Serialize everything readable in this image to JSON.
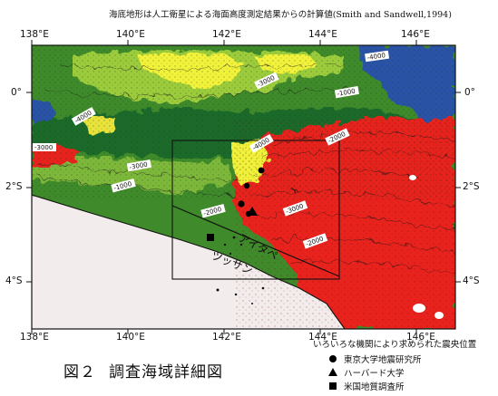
{
  "header_note": "海底地形は人工衛星による海面高度測定結果からの計算値(Smith and Sandwell,1994)",
  "longitudes": [
    "138°E",
    "140°E",
    "142°E",
    "144°E",
    "146°E"
  ],
  "latitudes": [
    "0°",
    "2°S",
    "4°S"
  ],
  "contour_labels": [
    "-4000",
    "-3000",
    "-2000",
    "-1000"
  ],
  "trench_label": "アイタペ",
  "coast_label": "ツッサン",
  "figure": {
    "number": "図２",
    "title": "調査海域詳細図"
  },
  "legend": {
    "title": "いろいろな機関により求められた震央位置",
    "items": [
      {
        "symbol": "circle",
        "label": "東京大学地震研究所"
      },
      {
        "symbol": "triangle",
        "label": "ハーバード大学"
      },
      {
        "symbol": "square",
        "label": "米国地質調査所"
      }
    ]
  },
  "colors": {
    "deep_blue": "#2a52a8",
    "deep_green": "#1f6b2a",
    "mid_green": "#4f9a2e",
    "light_green": "#9ccc3a",
    "yellow": "#f2f23a",
    "shelf_red": "#e8241c",
    "land": "#f2ecec"
  }
}
